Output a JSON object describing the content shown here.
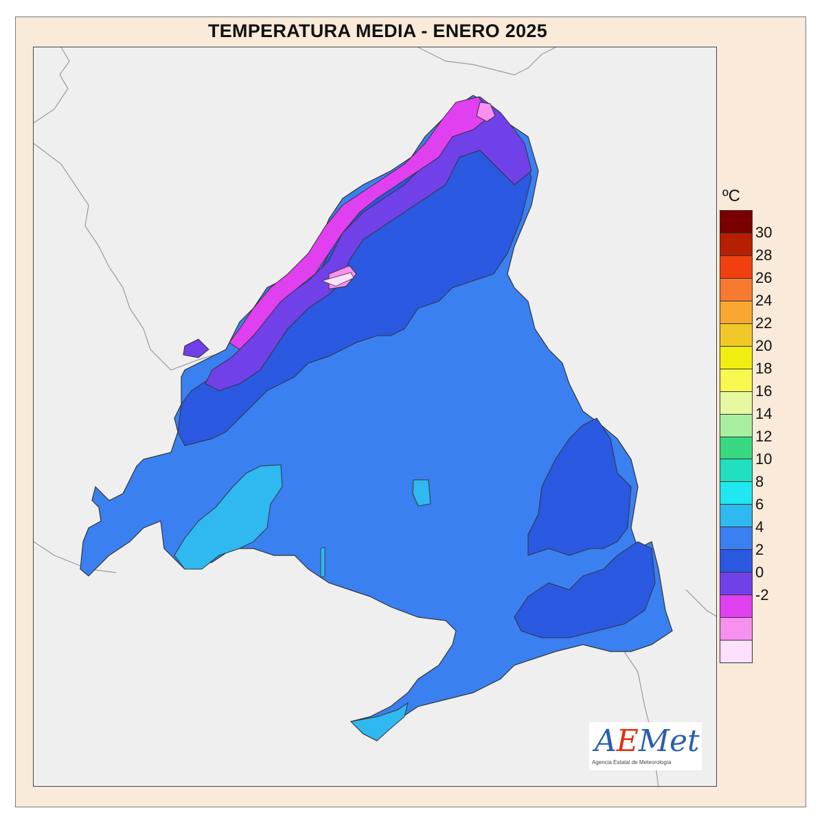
{
  "title": "TEMPERATURA MEDIA - ENERO 2025",
  "legend": {
    "unit": "ºC",
    "ticks": [
      "30",
      "28",
      "26",
      "24",
      "22",
      "20",
      "18",
      "16",
      "14",
      "12",
      "10",
      "8",
      "6",
      "4",
      "2",
      "0",
      "-2"
    ],
    "colors": [
      "#7a0000",
      "#b42000",
      "#f04010",
      "#f87a30",
      "#f8a830",
      "#f0c828",
      "#f0ee10",
      "#f8f850",
      "#e8f8a0",
      "#a8f0a0",
      "#38d880",
      "#20e0c0",
      "#20e8f0",
      "#30b8f0",
      "#3a80f0",
      "#2a58e0",
      "#7040e8",
      "#e040f0",
      "#f890f0",
      "#fde0fd"
    ]
  },
  "map": {
    "region_fill_main": "#3a80f0",
    "region_fill_cold": "#2a58e0",
    "region_fill_colder": "#7040e8",
    "region_fill_coldest": "#e040f0",
    "region_fill_below_zero": "#f890f0",
    "region_fill_warm": "#30b8f0",
    "background": "#efefef",
    "frame": "#f9ead9"
  },
  "logo": {
    "text_part1": "A",
    "text_e": "E",
    "text_part2": "Met",
    "subtitle": "Agencia Estatal de Meteorología"
  }
}
